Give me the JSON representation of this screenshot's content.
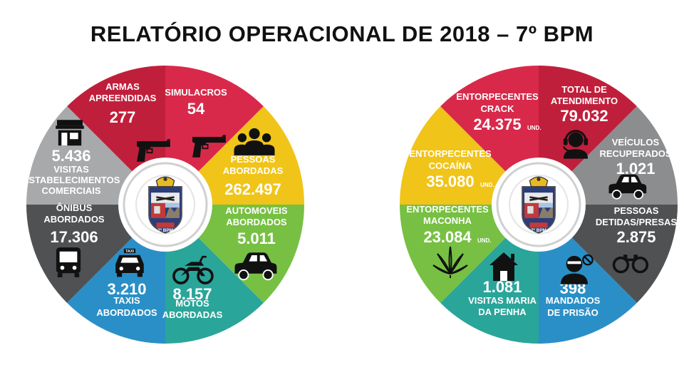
{
  "title": "RELATÓRIO OPERACIONAL DE 2018 – 7º BPM",
  "colors": {
    "red": "#d9294a",
    "crimson": "#c01f3b",
    "yellow": "#f0c419",
    "green": "#77c043",
    "teal": "#2aa59a",
    "blue": "#2b8fc7",
    "gray": "#8b8d8f",
    "darkgray": "#4f5153",
    "lightgray": "#a7a9ab"
  },
  "emblem_label": "7º BPM",
  "left_wheel": {
    "segments": [
      {
        "id": "armas",
        "label1": "ARMAS",
        "label2": "APREENDIDAS",
        "value": "277",
        "icon": "pistol-icon"
      },
      {
        "id": "simulacros",
        "label1": "SIMULACROS",
        "value": "54",
        "icon": "pistol-icon"
      },
      {
        "id": "pessoas",
        "label1": "PESSOAS",
        "label2": "ABORDADAS",
        "value": "262.497",
        "icon": "people-icon"
      },
      {
        "id": "automoveis",
        "label1": "AUTOMOVEIS",
        "label2": "ABORDADOS",
        "value": "5.011",
        "icon": "car-icon"
      },
      {
        "id": "motos",
        "label1": "MOTOS",
        "label2": "ABORDADAS",
        "value": "8.157",
        "icon": "motorcycle-icon"
      },
      {
        "id": "taxis",
        "label1": "TAXIS",
        "label2": "ABORDADOS",
        "value": "3.210",
        "icon": "taxi-icon"
      },
      {
        "id": "onibus",
        "label1": "ÔNIBUS",
        "label2": "ABORDADOS",
        "value": "17.306",
        "icon": "bus-icon"
      },
      {
        "id": "visitas",
        "label1": "VISITAS",
        "label2": "ESTABELECIMENTOS",
        "label3": "COMERCIAIS",
        "value": "5.436",
        "icon": "store-icon"
      }
    ]
  },
  "right_wheel": {
    "unit": "UND.",
    "segments": [
      {
        "id": "total",
        "label1": "TOTAL DE",
        "label2": "ATENDIMENTO",
        "value": "79.032",
        "icon": "headset-icon"
      },
      {
        "id": "veiculos",
        "label1": "VEÍCULOS",
        "label2": "RECUPERADOS",
        "value": "1.021",
        "icon": "car-icon"
      },
      {
        "id": "pessoas_detidas",
        "label1": "PESSOAS",
        "label2": "DETIDAS/PRESAS",
        "value": "2.875",
        "icon": "handcuffs-icon"
      },
      {
        "id": "mandados",
        "label1": "MANDADOS",
        "label2": "DE PRISÃO",
        "value": "398",
        "icon": "prisoner-icon"
      },
      {
        "id": "maria_penha",
        "label1": "VISITAS MARIA",
        "label2": "DA PENHA",
        "value": "1.081",
        "icon": "house-icon"
      },
      {
        "id": "maconha",
        "label1": "ENTORPECENTES",
        "label2": "MACONHA",
        "value": "23.084",
        "icon": "leaf-icon"
      },
      {
        "id": "cocaina",
        "label1": "ENTORPECENTES",
        "label2": "COCAÍNA",
        "value": "35.080"
      },
      {
        "id": "crack",
        "label1": "ENTORPECENTES",
        "label2": "CRACK",
        "value": "24.375"
      }
    ]
  }
}
